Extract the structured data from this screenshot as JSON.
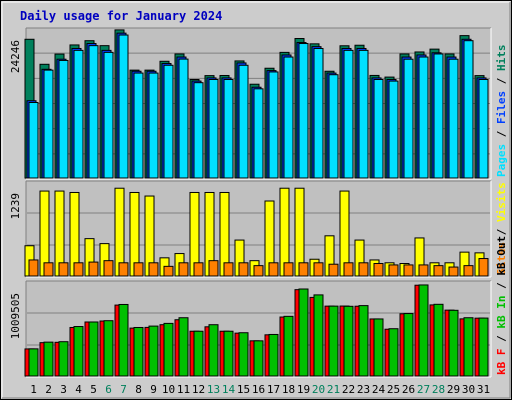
{
  "chart_data": [
    {
      "type": "bar",
      "title": "Daily usage for January 2024",
      "categories": [
        "1",
        "2",
        "3",
        "4",
        "5",
        "6",
        "7",
        "8",
        "9",
        "10",
        "11",
        "12",
        "13",
        "14",
        "15",
        "16",
        "17",
        "18",
        "19",
        "20",
        "21",
        "22",
        "23",
        "24",
        "25",
        "26",
        "27",
        "28",
        "29",
        "30",
        "31"
      ],
      "weekend_days": [
        "6",
        "7",
        "13",
        "14",
        "20",
        "21",
        "27",
        "28"
      ],
      "ytick": "24246",
      "ylim": [
        0,
        24246
      ],
      "right_label": [
        "Pages",
        "Files",
        "Hits"
      ],
      "series": [
        {
          "name": "Hits",
          "color": "#00805c",
          "values": [
            23690,
            19450,
            21180,
            22730,
            23450,
            22610,
            25280,
            18460,
            18460,
            19960,
            21200,
            16870,
            17530,
            17550,
            20020,
            16070,
            18780,
            21470,
            23820,
            22920,
            18270,
            22590,
            22680,
            17560,
            17280,
            21200,
            21540,
            22020,
            21200,
            24310,
            17530
          ]
        },
        {
          "name": "Files",
          "color": "#0040ff",
          "values": [
            13270,
            18600,
            20310,
            22130,
            22970,
            21810,
            24730,
            18270,
            18270,
            19580,
            20680,
            16600,
            17140,
            17140,
            19680,
            15560,
            18380,
            21030,
            23140,
            22440,
            17960,
            22130,
            22130,
            17140,
            16870,
            20680,
            21030,
            21400,
            20680,
            23690,
            17140
          ]
        },
        {
          "name": "Pages",
          "color": "#00e0ff",
          "values": [
            12970,
            18460,
            20100,
            21810,
            22610,
            21470,
            24410,
            17960,
            17960,
            19280,
            20330,
            16330,
            16870,
            16870,
            19280,
            15290,
            18150,
            20680,
            22970,
            22130,
            17680,
            21810,
            21810,
            16870,
            16600,
            20310,
            20680,
            21200,
            20310,
            23450,
            16870
          ]
        }
      ]
    },
    {
      "type": "bar",
      "categories": [
        "1",
        "2",
        "3",
        "4",
        "5",
        "6",
        "7",
        "8",
        "9",
        "10",
        "11",
        "12",
        "13",
        "14",
        "15",
        "16",
        "17",
        "18",
        "19",
        "20",
        "21",
        "22",
        "23",
        "24",
        "25",
        "26",
        "27",
        "28",
        "29",
        "30",
        "31"
      ],
      "ytick": "1239",
      "ylim": [
        0,
        1239
      ],
      "right_label": [
        "Sites",
        "Visits"
      ],
      "series": [
        {
          "name": "Visits",
          "color": "#ffff00",
          "values": [
            440,
            1210,
            1210,
            1190,
            540,
            470,
            1250,
            1190,
            1140,
            270,
            330,
            1190,
            1190,
            1190,
            520,
            230,
            1070,
            1250,
            1250,
            250,
            580,
            1210,
            520,
            240,
            200,
            190,
            550,
            200,
            200,
            350,
            340
          ]
        },
        {
          "name": "Sites",
          "color": "#ff8000",
          "values": [
            240,
            200,
            200,
            200,
            210,
            230,
            200,
            200,
            200,
            150,
            200,
            200,
            230,
            200,
            200,
            160,
            200,
            200,
            200,
            200,
            180,
            200,
            200,
            190,
            170,
            170,
            170,
            160,
            140,
            160,
            260
          ]
        }
      ]
    },
    {
      "type": "bar",
      "categories": [
        "1",
        "2",
        "3",
        "4",
        "5",
        "6",
        "7",
        "8",
        "9",
        "10",
        "11",
        "12",
        "13",
        "14",
        "15",
        "16",
        "17",
        "18",
        "19",
        "20",
        "21",
        "22",
        "23",
        "24",
        "25",
        "26",
        "27",
        "28",
        "29",
        "30",
        "31"
      ],
      "ytick": "1009505",
      "ylim": [
        0,
        1009505
      ],
      "right_label": [
        "kB F",
        "kB In",
        "kB Out"
      ],
      "series": [
        {
          "name": "kB F",
          "color": "#ff0000",
          "values": [
            322000,
            394000,
            398000,
            568000,
            631000,
            642000,
            825000,
            561000,
            569000,
            600000,
            657000,
            525000,
            576000,
            525000,
            503000,
            415000,
            484000,
            688000,
            1002000,
            913000,
            813000,
            814000,
            812000,
            666000,
            548000,
            725000,
            1053000,
            827000,
            767000,
            667000,
            675000
          ]
        },
        {
          "name": "kB In",
          "color": "#00c000",
          "values": [
            323000,
            400000,
            405000,
            579000,
            631000,
            646000,
            832000,
            568000,
            584000,
            615000,
            680000,
            525000,
            600000,
            525000,
            508000,
            415000,
            488000,
            696000,
            1009505,
            942000,
            813000,
            811000,
            819000,
            666000,
            554000,
            728000,
            1056000,
            834000,
            765000,
            680000,
            676000
          ]
        }
      ]
    }
  ]
}
